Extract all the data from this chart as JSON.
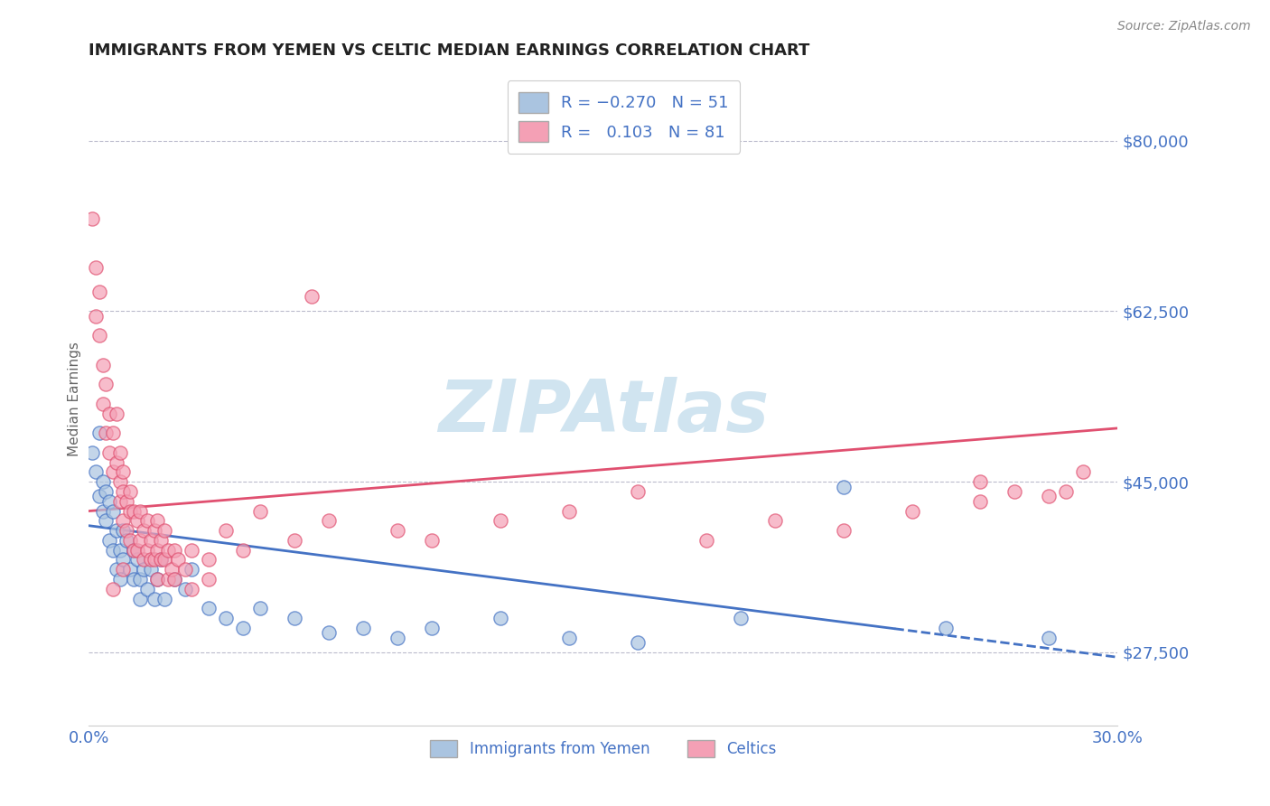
{
  "title": "IMMIGRANTS FROM YEMEN VS CELTIC MEDIAN EARNINGS CORRELATION CHART",
  "source_text": "Source: ZipAtlas.com",
  "ylabel": "Median Earnings",
  "xlim": [
    0.0,
    0.3
  ],
  "ylim": [
    20000,
    87000
  ],
  "yticks": [
    27500,
    45000,
    62500,
    80000
  ],
  "ytick_labels": [
    "$27,500",
    "$45,000",
    "$62,500",
    "$80,000"
  ],
  "xticks": [
    0.0,
    0.05,
    0.1,
    0.15,
    0.2,
    0.25,
    0.3
  ],
  "xtick_labels": [
    "0.0%",
    "",
    "",
    "",
    "",
    "",
    "30.0%"
  ],
  "series1_color": "#aac4e0",
  "series2_color": "#f4a0b5",
  "trend1_color": "#4472c4",
  "trend2_color": "#e05070",
  "watermark": "ZIPAtlas",
  "watermark_color": "#d0e4f0",
  "blue_text_color": "#4472c4",
  "trend1_x0": 0.0,
  "trend1_y0": 40500,
  "trend1_x1": 0.3,
  "trend1_y1": 27000,
  "trend1_solid_end": 0.235,
  "trend2_x0": 0.0,
  "trend2_y0": 42000,
  "trend2_x1": 0.3,
  "trend2_y1": 50500,
  "series1_points": [
    [
      0.001,
      48000
    ],
    [
      0.002,
      46000
    ],
    [
      0.003,
      43500
    ],
    [
      0.003,
      50000
    ],
    [
      0.004,
      42000
    ],
    [
      0.004,
      45000
    ],
    [
      0.005,
      41000
    ],
    [
      0.005,
      44000
    ],
    [
      0.006,
      39000
    ],
    [
      0.006,
      43000
    ],
    [
      0.007,
      38000
    ],
    [
      0.007,
      42000
    ],
    [
      0.008,
      40000
    ],
    [
      0.008,
      36000
    ],
    [
      0.009,
      38000
    ],
    [
      0.009,
      35000
    ],
    [
      0.01,
      40000
    ],
    [
      0.01,
      37000
    ],
    [
      0.011,
      39000
    ],
    [
      0.012,
      36000
    ],
    [
      0.013,
      38000
    ],
    [
      0.013,
      35000
    ],
    [
      0.014,
      37000
    ],
    [
      0.015,
      35000
    ],
    [
      0.015,
      33000
    ],
    [
      0.016,
      36000
    ],
    [
      0.017,
      34000
    ],
    [
      0.018,
      36000
    ],
    [
      0.019,
      33000
    ],
    [
      0.02,
      35000
    ],
    [
      0.021,
      37000
    ],
    [
      0.022,
      33000
    ],
    [
      0.025,
      35000
    ],
    [
      0.028,
      34000
    ],
    [
      0.03,
      36000
    ],
    [
      0.035,
      32000
    ],
    [
      0.04,
      31000
    ],
    [
      0.045,
      30000
    ],
    [
      0.05,
      32000
    ],
    [
      0.06,
      31000
    ],
    [
      0.07,
      29500
    ],
    [
      0.08,
      30000
    ],
    [
      0.09,
      29000
    ],
    [
      0.1,
      30000
    ],
    [
      0.12,
      31000
    ],
    [
      0.14,
      29000
    ],
    [
      0.16,
      28500
    ],
    [
      0.19,
      31000
    ],
    [
      0.22,
      44500
    ],
    [
      0.25,
      30000
    ],
    [
      0.28,
      29000
    ]
  ],
  "series2_points": [
    [
      0.001,
      72000
    ],
    [
      0.002,
      67000
    ],
    [
      0.002,
      62000
    ],
    [
      0.003,
      64500
    ],
    [
      0.003,
      60000
    ],
    [
      0.004,
      57000
    ],
    [
      0.004,
      53000
    ],
    [
      0.005,
      50000
    ],
    [
      0.005,
      55000
    ],
    [
      0.006,
      48000
    ],
    [
      0.006,
      52000
    ],
    [
      0.007,
      46000
    ],
    [
      0.007,
      50000
    ],
    [
      0.008,
      47000
    ],
    [
      0.008,
      52000
    ],
    [
      0.009,
      45000
    ],
    [
      0.009,
      43000
    ],
    [
      0.009,
      48000
    ],
    [
      0.01,
      44000
    ],
    [
      0.01,
      41000
    ],
    [
      0.01,
      46000
    ],
    [
      0.011,
      43000
    ],
    [
      0.011,
      40000
    ],
    [
      0.012,
      44000
    ],
    [
      0.012,
      42000
    ],
    [
      0.012,
      39000
    ],
    [
      0.013,
      42000
    ],
    [
      0.013,
      38000
    ],
    [
      0.014,
      41000
    ],
    [
      0.014,
      38000
    ],
    [
      0.015,
      42000
    ],
    [
      0.015,
      39000
    ],
    [
      0.016,
      40000
    ],
    [
      0.016,
      37000
    ],
    [
      0.017,
      41000
    ],
    [
      0.017,
      38000
    ],
    [
      0.018,
      39000
    ],
    [
      0.018,
      37000
    ],
    [
      0.019,
      40000
    ],
    [
      0.019,
      37000
    ],
    [
      0.02,
      38000
    ],
    [
      0.02,
      35000
    ],
    [
      0.02,
      41000
    ],
    [
      0.021,
      37000
    ],
    [
      0.021,
      39000
    ],
    [
      0.022,
      37000
    ],
    [
      0.022,
      40000
    ],
    [
      0.023,
      38000
    ],
    [
      0.023,
      35000
    ],
    [
      0.024,
      36000
    ],
    [
      0.025,
      38000
    ],
    [
      0.025,
      35000
    ],
    [
      0.026,
      37000
    ],
    [
      0.028,
      36000
    ],
    [
      0.03,
      38000
    ],
    [
      0.03,
      34000
    ],
    [
      0.035,
      37000
    ],
    [
      0.035,
      35000
    ],
    [
      0.04,
      40000
    ],
    [
      0.045,
      38000
    ],
    [
      0.05,
      42000
    ],
    [
      0.06,
      39000
    ],
    [
      0.065,
      64000
    ],
    [
      0.07,
      41000
    ],
    [
      0.09,
      40000
    ],
    [
      0.1,
      39000
    ],
    [
      0.12,
      41000
    ],
    [
      0.14,
      42000
    ],
    [
      0.16,
      44000
    ],
    [
      0.18,
      39000
    ],
    [
      0.2,
      41000
    ],
    [
      0.22,
      40000
    ],
    [
      0.24,
      42000
    ],
    [
      0.26,
      45000
    ],
    [
      0.26,
      43000
    ],
    [
      0.27,
      44000
    ],
    [
      0.28,
      43500
    ],
    [
      0.285,
      44000
    ],
    [
      0.29,
      46000
    ],
    [
      0.01,
      36000
    ],
    [
      0.007,
      34000
    ]
  ]
}
